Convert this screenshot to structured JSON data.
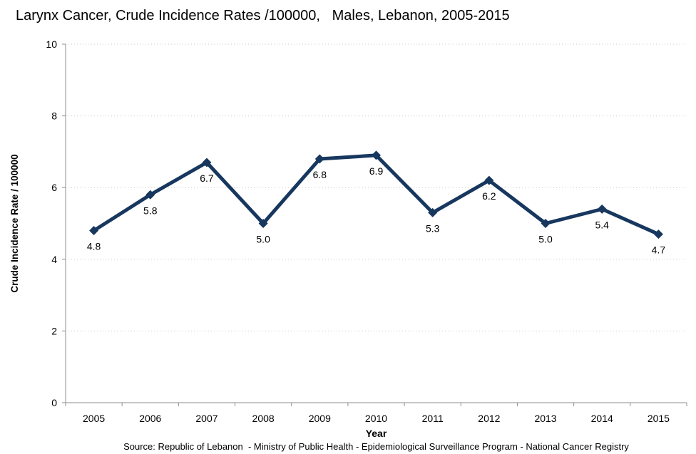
{
  "title": "Larynx Cancer, Crude Incidence Rates /100000,   Males, Lebanon, 2005-2015",
  "source": "Source: Republic of Lebanon  - Ministry of Public Health - Epidemiological Surveillance Program - National Cancer Registry",
  "chart_data": {
    "type": "line",
    "title": "Larynx Cancer, Crude Incidence Rates /100000,   Males, Lebanon, 2005-2015",
    "categories": [
      "2005",
      "2006",
      "2007",
      "2008",
      "2009",
      "2010",
      "2011",
      "2012",
      "2013",
      "2014",
      "2015"
    ],
    "series": [
      {
        "name": "Crude Incidence Rate",
        "values": [
          4.8,
          5.8,
          6.7,
          5.0,
          6.8,
          6.9,
          5.3,
          6.2,
          5.0,
          5.4,
          4.7
        ],
        "data_labels": [
          "4.8",
          "5.8",
          "6.7",
          "5.0",
          "6.8",
          "6.9",
          "5.3",
          "6.2",
          "5.0",
          "5.4",
          "4.7"
        ]
      }
    ],
    "xlabel": "Year",
    "ylabel": "Crude Incidence Rate / 100000",
    "ylim": [
      0,
      10
    ],
    "yticks": [
      0,
      2,
      4,
      6,
      8,
      10
    ],
    "ytick_labels": [
      "0",
      "2",
      "4",
      "6",
      "8",
      "10"
    ],
    "grid": "horizontal-dotted",
    "legend": "none",
    "marker": "diamond",
    "colors": {
      "line": "#17375E",
      "marker": "#17375E",
      "axis": "#8E8E8E",
      "gridline": "#C9C9C9",
      "text": "#000000"
    }
  }
}
